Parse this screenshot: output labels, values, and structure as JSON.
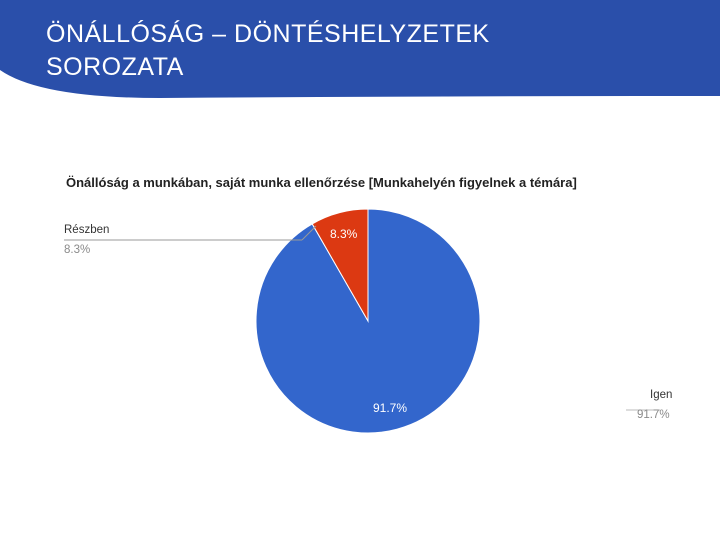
{
  "slide": {
    "title_line1": "ÖNÁLLÓSÁG – DÖNTÉSHELYZETEK",
    "title_line2": "SOROZATA",
    "header_color": "#2a4faa"
  },
  "chart_data": {
    "type": "pie",
    "title": "Önállóság a munkában, saját munka ellenőrzése [Munkahelyén figyelnek a témára]",
    "slices": [
      {
        "name": "Igen",
        "value": 91.7,
        "label": "91.7%",
        "color": "#3366cc"
      },
      {
        "name": "Részben",
        "value": 8.3,
        "label": "8.3%",
        "color": "#dc3912"
      }
    ],
    "legend": "callouts"
  }
}
